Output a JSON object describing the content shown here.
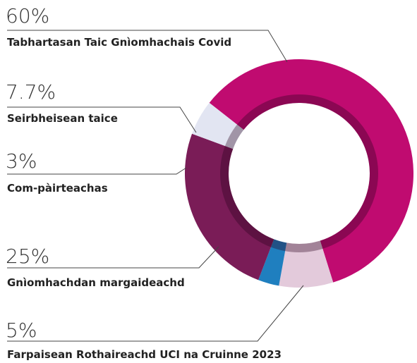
{
  "chart_data": {
    "type": "donut",
    "categories": [
      "Tabhartasan Taic Gnìomhachais Covid",
      "Seirbheisean taice",
      "Com-pàirteachas",
      "Gnìomhachdan margaideachd",
      "Farpaisean Rothaireachd UCI na Cruinne 2023"
    ],
    "values": [
      60,
      7.7,
      3,
      25,
      5
    ],
    "value_labels": [
      "60%",
      "7.7%",
      "3%",
      "25%",
      "5%"
    ],
    "colors": [
      "#c00b70",
      "#e3cadb",
      "#1f7fbf",
      "#7a1c57",
      "#e2e5f2"
    ]
  }
}
